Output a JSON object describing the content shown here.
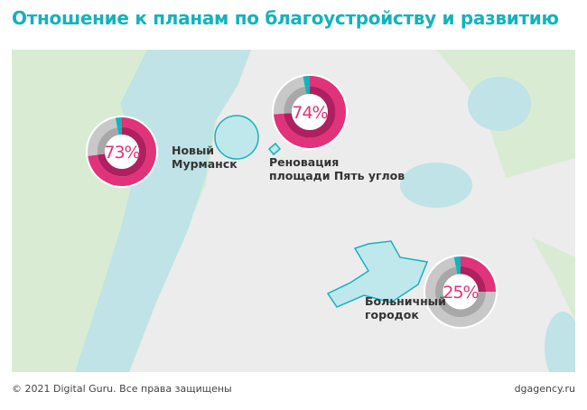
{
  "title": "Отношение к планам по благоустройству и развитию",
  "colors": {
    "approve": "#e0337a",
    "approve_inner": "#b02060",
    "neutral": "#c8c8c8",
    "neutral_inner": "#a8a8a8",
    "other": "#14b2bd",
    "land": "#d9ecd3",
    "city": "#ececec",
    "water": "#bfe3e6",
    "accent": "#14b2bd"
  },
  "places": [
    {
      "name": "Новый Мурманск",
      "line1": "Новый",
      "line2": "Мурманск",
      "percent_label": "73%",
      "percent": 73,
      "other_percent": 3
    },
    {
      "name": "Реновация площади Пять углов",
      "line1": "Реновация",
      "line2": "площади Пять углов",
      "percent_label": "74%",
      "percent": 74,
      "other_percent": 3
    },
    {
      "name": "Больничный городок",
      "line1": "Больничный",
      "line2": "городок",
      "percent_label": "25%",
      "percent": 25,
      "other_percent": 3
    }
  ],
  "footer": {
    "copyright": "© 2021 Digital Guru. Все права защищены",
    "site": "dgagency.ru"
  }
}
